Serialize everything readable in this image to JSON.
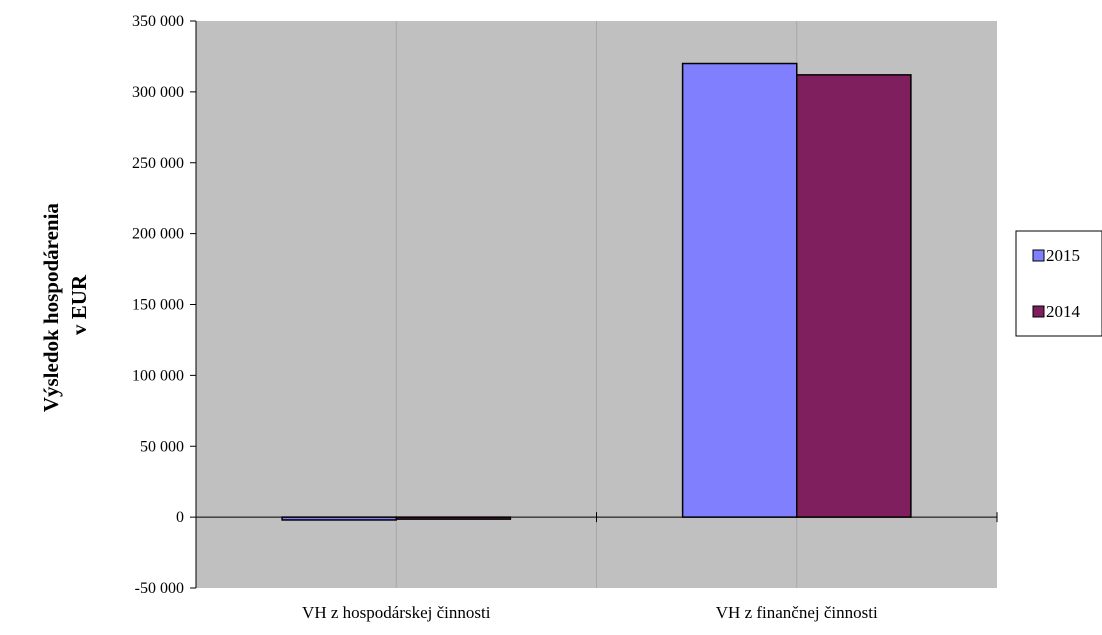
{
  "chart_data": {
    "type": "bar",
    "title": "",
    "xlabel": "",
    "ylabel": [
      "Výsledok hospodárenia",
      "v EUR"
    ],
    "categories": [
      "VH z hospodárskej činnosti",
      "VH z finančnej činnosti"
    ],
    "series": [
      {
        "name": "2015",
        "values": [
          -2000,
          320000
        ],
        "color": "#8080ff"
      },
      {
        "name": "2014",
        "values": [
          -1000,
          312000
        ],
        "color": "#7f1f5e"
      }
    ],
    "ylim": [
      -50000,
      350000
    ],
    "yticks": [
      350000,
      300000,
      250000,
      200000,
      150000,
      100000,
      50000,
      0,
      -50000
    ],
    "ytick_labels": [
      "350 000",
      "300 000",
      "250 000",
      "200 000",
      "150 000",
      "100 000",
      "50 000",
      "0",
      "-50 000"
    ],
    "grid": "vertical",
    "legend_position": "right",
    "plot_background": "#c0c0c0"
  }
}
